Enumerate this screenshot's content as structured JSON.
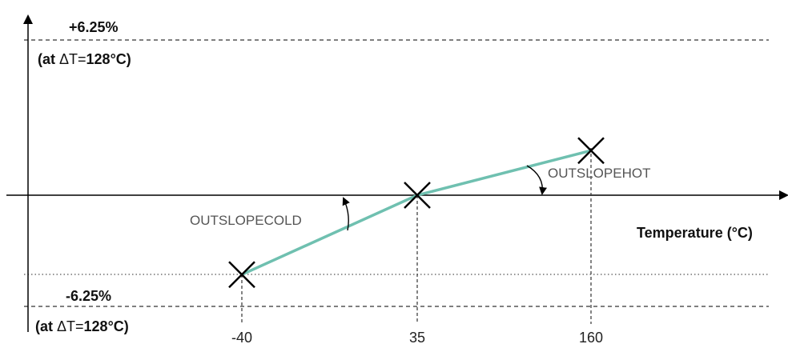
{
  "diagram": {
    "upper_limit": {
      "value_label": "+6.25%",
      "condition_prefix": "(at ",
      "delta_symbol": "ΔT=",
      "delta_value": "128°C)"
    },
    "lower_limit": {
      "value_label": "-6.25%",
      "condition_prefix": "(at ",
      "delta_symbol": "ΔT=",
      "delta_value": "128°C)"
    },
    "x_axis_label": "Temperature (°C)",
    "slope_labels": {
      "cold": "OUTSLOPECOLD",
      "hot": "OUTSLOPEHOT"
    },
    "line_color": "#6fc0b0",
    "axis_color": "#000000"
  },
  "chart_data": {
    "type": "line",
    "xlabel": "Temperature (°C)",
    "x_ticks": [
      "-40",
      "35",
      "160"
    ],
    "series": [
      {
        "x": [
          -40,
          35,
          160
        ],
        "y": [
          -0.8,
          0,
          0.45
        ]
      }
    ],
    "y_limits_labels": [
      "+6.25%",
      "-6.25%"
    ],
    "markers": "x"
  }
}
